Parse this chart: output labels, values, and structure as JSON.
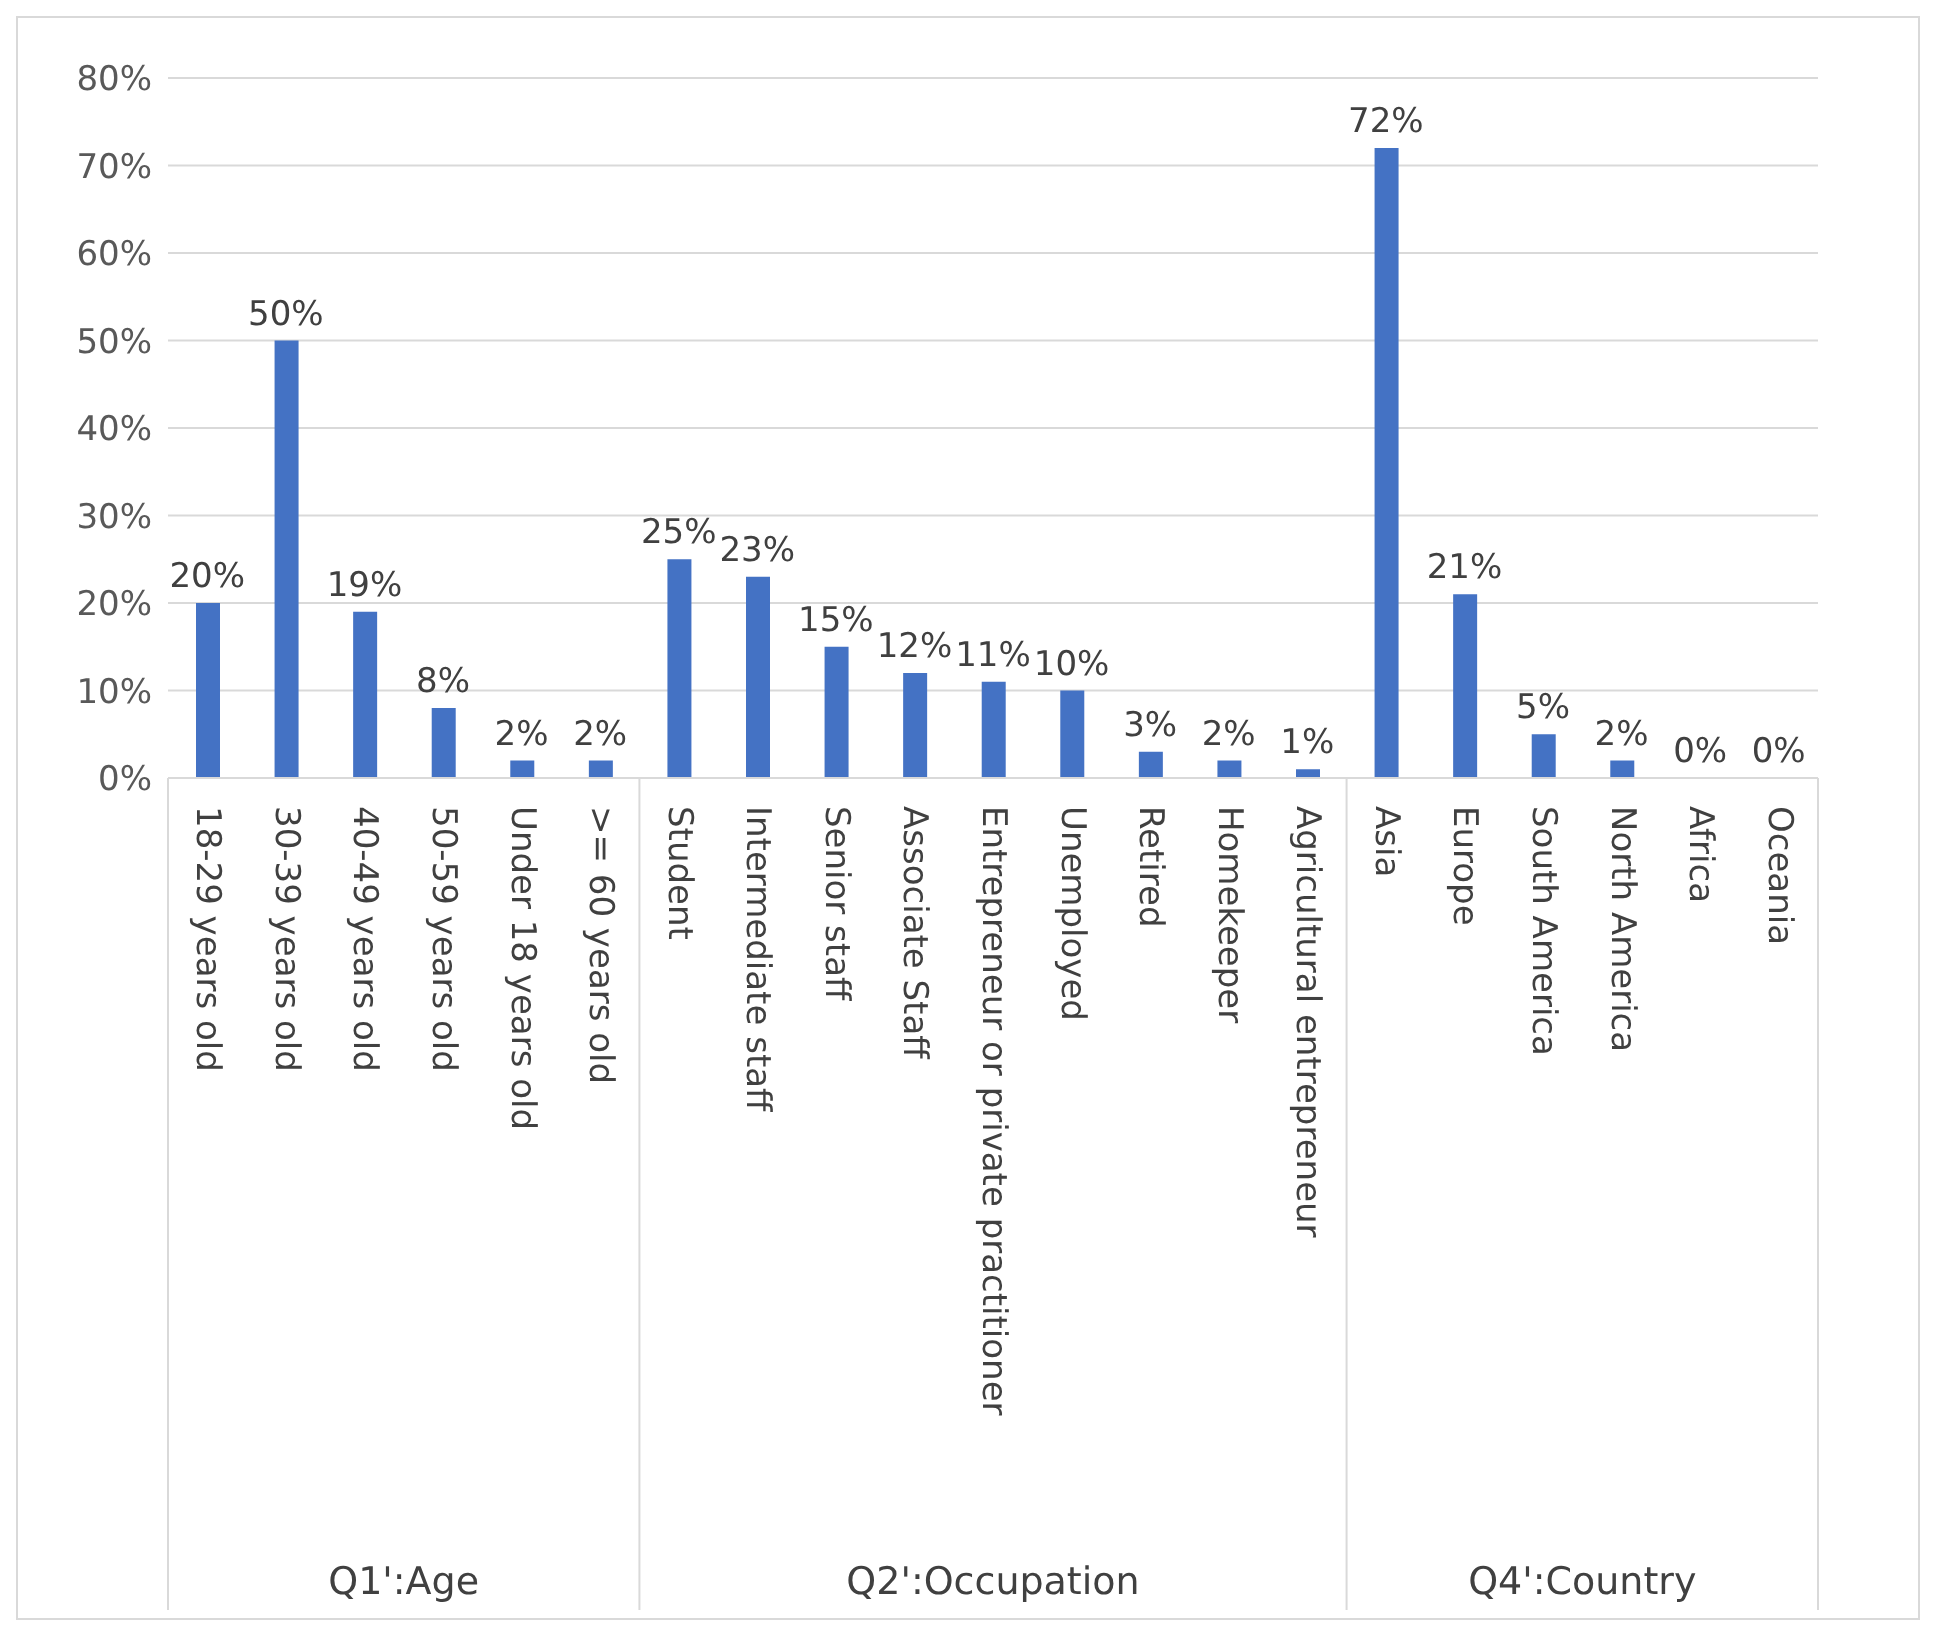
{
  "chart_data": {
    "type": "bar",
    "categories": [
      "18-29 years old",
      "30-39 years old",
      "40-49 years old",
      "50-59 years old",
      "Under 18 years old",
      ">= 60 years old",
      "Student",
      "Intermediate staff",
      "Senior staff",
      "Associate Staff",
      "Entrepreneur or private practitioner",
      "Unemployed",
      "Retired",
      "Homekeeper",
      "Agricultural entrepreneur",
      "Asia",
      "Europe",
      "South America",
      "North America",
      "Africa",
      "Oceania"
    ],
    "values": [
      20,
      50,
      19,
      8,
      2,
      2,
      25,
      23,
      15,
      12,
      11,
      10,
      3,
      2,
      1,
      72,
      21,
      5,
      2,
      0,
      0
    ],
    "value_labels": [
      "20%",
      "50%",
      "19%",
      "8%",
      "2%",
      "2%",
      "25%",
      "23%",
      "15%",
      "12%",
      "11%",
      "10%",
      "3%",
      "2%",
      "1%",
      "72%",
      "21%",
      "5%",
      "2%",
      "0%",
      "0%"
    ],
    "color": "#4472c4",
    "ylim": [
      0,
      80
    ],
    "yticks": [
      {
        "value": 0,
        "label": "0%"
      },
      {
        "value": 10,
        "label": "10%"
      },
      {
        "value": 20,
        "label": "20%"
      },
      {
        "value": 30,
        "label": "30%"
      },
      {
        "value": 40,
        "label": "40%"
      },
      {
        "value": 50,
        "label": "50%"
      },
      {
        "value": 60,
        "label": "60%"
      },
      {
        "value": 70,
        "label": "70%"
      },
      {
        "value": 80,
        "label": "80%"
      }
    ],
    "grid": "y",
    "annotations": [
      "Q1':Age",
      "Q2':Occupation",
      "Q4':Country"
    ]
  }
}
